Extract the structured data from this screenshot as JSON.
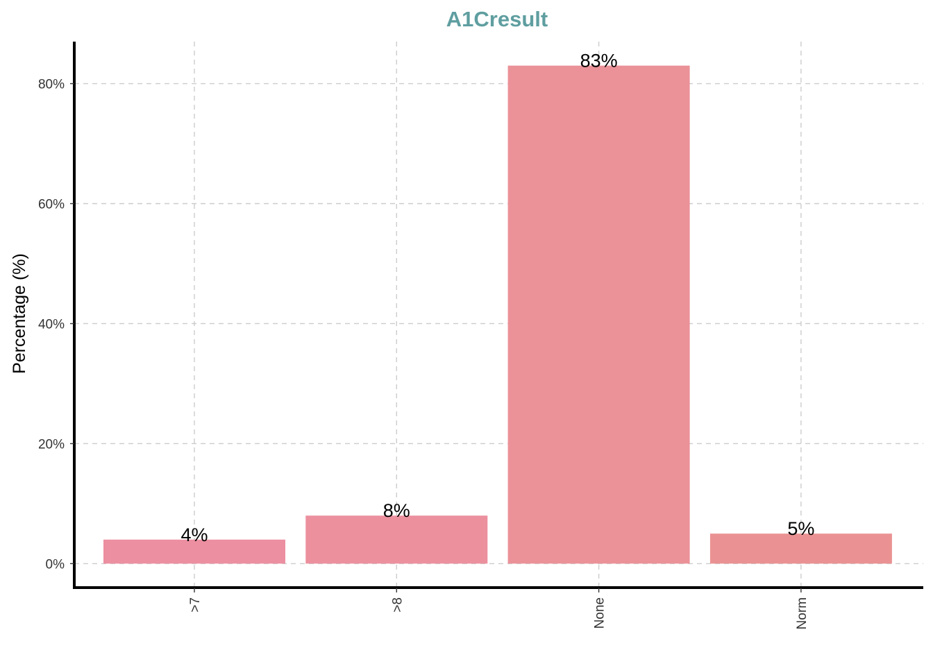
{
  "chart_data": {
    "type": "bar",
    "title": "A1Cresult",
    "xlabel": "",
    "ylabel": "Percentage (%)",
    "categories": [
      ">7",
      ">8",
      "None",
      "Norm"
    ],
    "values": [
      4,
      8,
      83,
      5
    ],
    "data_labels": [
      "4%",
      "8%",
      "83%",
      "5%"
    ],
    "bar_colors": [
      "#ec8fa0",
      "#ec909e",
      "#eb9198",
      "#ea9293"
    ],
    "ylim": [
      -4,
      87
    ],
    "yticks": [
      0,
      20,
      40,
      60,
      80
    ],
    "ytick_labels": [
      "0%",
      "20%",
      "40%",
      "60%",
      "80%"
    ],
    "grid": true,
    "legend": "none",
    "title_color": "#5f9ea0"
  }
}
